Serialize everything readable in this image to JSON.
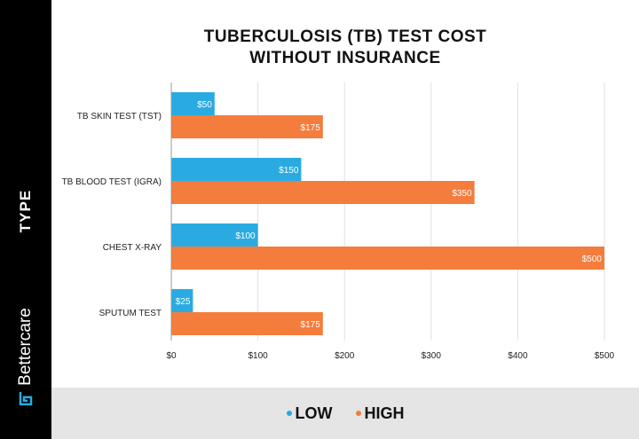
{
  "chart_data": {
    "type": "bar",
    "orientation": "horizontal",
    "title_line1": "TUBERCULOSIS (TB) TEST COST",
    "title_line2": "WITHOUT INSURANCE",
    "ylabel": "TYPE",
    "categories": [
      "TB SKIN TEST (TST)",
      "TB BLOOD TEST (IGRA)",
      "CHEST X-RAY",
      "SPUTUM TEST"
    ],
    "series": [
      {
        "name": "LOW",
        "color": "#29abe2",
        "values": [
          50,
          150,
          100,
          25
        ],
        "labels": [
          "$50",
          "$150",
          "$100",
          "$25"
        ]
      },
      {
        "name": "HIGH",
        "color": "#f47c3c",
        "values": [
          175,
          350,
          500,
          175
        ],
        "labels": [
          "$175",
          "$350",
          "$500",
          "$175"
        ]
      }
    ],
    "xlim": [
      0,
      500
    ],
    "xticks": [
      0,
      100,
      200,
      300,
      400,
      500
    ],
    "xtick_labels": [
      "$0",
      "$100",
      "$200",
      "$300",
      "$400",
      "$500"
    ],
    "grid": true,
    "legend_position": "bottom"
  },
  "brand": {
    "name": "Bettercare"
  }
}
